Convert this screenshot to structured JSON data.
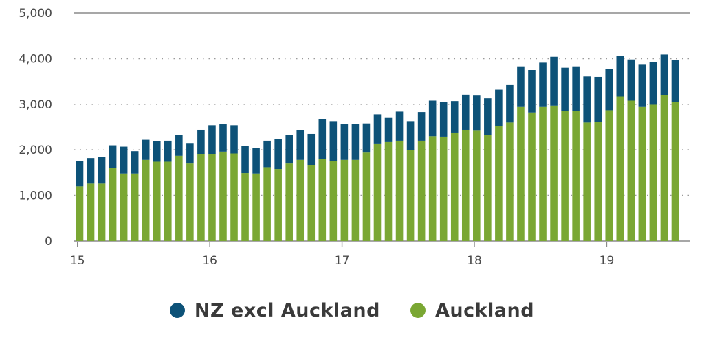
{
  "chart_data": {
    "type": "bar",
    "stacked": true,
    "title": "",
    "xlabel": "",
    "ylabel": "",
    "ylim": [
      0,
      5000
    ],
    "yticks": [
      0,
      1000,
      2000,
      3000,
      4000,
      5000
    ],
    "ytick_labels": [
      "0",
      "1,000",
      "2,000",
      "3,000",
      "4,000",
      "5,000"
    ],
    "xtick_labels": [
      {
        "label": "15",
        "at_index": 0
      },
      {
        "label": "16",
        "at_index": 12
      },
      {
        "label": "17",
        "at_index": 24
      },
      {
        "label": "18",
        "at_index": 36
      },
      {
        "label": "19",
        "at_index": 48
      }
    ],
    "grid": {
      "y_dashed": [
        0,
        1000,
        2000,
        3000,
        4000,
        5000
      ]
    },
    "legend_position": "bottom",
    "series": [
      {
        "name": "NZ excl Auckland",
        "color": "#0d5278",
        "values": [
          560,
          560,
          580,
          500,
          590,
          490,
          440,
          450,
          460,
          450,
          450,
          540,
          640,
          600,
          620,
          590,
          560,
          580,
          650,
          630,
          650,
          690,
          870,
          870,
          780,
          790,
          640,
          640,
          530,
          640,
          640,
          630,
          780,
          760,
          690,
          770,
          770,
          810,
          800,
          820,
          890,
          930,
          970,
          1070,
          950,
          980,
          1010,
          980,
          900,
          890,
          900,
          940,
          940,
          890,
          920
        ]
      },
      {
        "name": "Auckland",
        "color": "#7aa733",
        "values": [
          1200,
          1260,
          1260,
          1600,
          1480,
          1480,
          1780,
          1740,
          1740,
          1870,
          1700,
          1900,
          1900,
          1960,
          1920,
          1490,
          1480,
          1620,
          1580,
          1700,
          1780,
          1660,
          1800,
          1760,
          1780,
          1780,
          1940,
          2140,
          2170,
          2200,
          1990,
          2200,
          2300,
          2290,
          2380,
          2440,
          2420,
          2320,
          2520,
          2600,
          2940,
          2820,
          2940,
          2970,
          2850,
          2850,
          2600,
          2620,
          2870,
          3170,
          3080,
          2940,
          2990,
          3200,
          3050
        ]
      }
    ],
    "categories_count": 55
  },
  "legend": {
    "items": [
      {
        "label": "NZ excl Auckland",
        "color": "#0d5278"
      },
      {
        "label": "Auckland",
        "color": "#7aa733"
      }
    ]
  }
}
